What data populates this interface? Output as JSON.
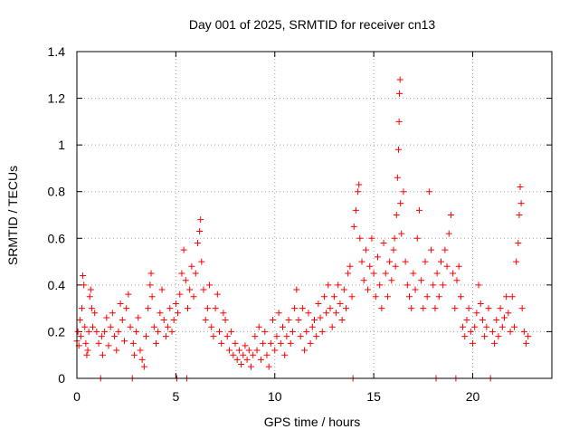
{
  "chart_data": {
    "type": "scatter",
    "title": "Day 001 of 2025, SRMTID for receiver cn13",
    "xlabel": "GPS time / hours",
    "ylabel": "SRMTID / TECUs",
    "xlim": [
      0,
      24
    ],
    "ylim": [
      0,
      1.4
    ],
    "xticks": [
      0,
      5,
      10,
      15,
      20
    ],
    "xtick_labels": [
      "0",
      "5",
      "10",
      "15",
      "20"
    ],
    "yticks": [
      0,
      0.2,
      0.4,
      0.6,
      0.8,
      1.0,
      1.2,
      1.4
    ],
    "ytick_labels": [
      "0",
      "0.2",
      "0.4",
      "0.6",
      "0.8",
      "1",
      "1.2",
      "1.4"
    ],
    "grid": true,
    "marker": "plus",
    "series": [
      {
        "name": "SRMTID",
        "color": "#ff0000",
        "points": [
          [
            0.0,
            0.16
          ],
          [
            0.05,
            0.2
          ],
          [
            0.1,
            0.14
          ],
          [
            0.15,
            0.25
          ],
          [
            0.2,
            0.18
          ],
          [
            0.25,
            0.3
          ],
          [
            0.3,
            0.44
          ],
          [
            0.35,
            0.4
          ],
          [
            0.4,
            0.22
          ],
          [
            0.45,
            0.15
          ],
          [
            0.5,
            0.1
          ],
          [
            0.55,
            0.12
          ],
          [
            0.6,
            0.2
          ],
          [
            0.65,
            0.35
          ],
          [
            0.7,
            0.38
          ],
          [
            0.75,
            0.3
          ],
          [
            0.8,
            0.22
          ],
          [
            0.9,
            0.28
          ],
          [
            1.0,
            0.2
          ],
          [
            1.1,
            0.15
          ],
          [
            1.2,
            0.0
          ],
          [
            1.25,
            0.18
          ],
          [
            1.3,
            0.1
          ],
          [
            1.4,
            0.2
          ],
          [
            1.5,
            0.26
          ],
          [
            1.6,
            0.14
          ],
          [
            1.7,
            0.22
          ],
          [
            1.8,
            0.28
          ],
          [
            1.9,
            0.18
          ],
          [
            2.0,
            0.12
          ],
          [
            2.1,
            0.2
          ],
          [
            2.2,
            0.32
          ],
          [
            2.3,
            0.25
          ],
          [
            2.4,
            0.16
          ],
          [
            2.5,
            0.3
          ],
          [
            2.6,
            0.36
          ],
          [
            2.7,
            0.22
          ],
          [
            2.8,
            0.0
          ],
          [
            2.85,
            0.15
          ],
          [
            2.9,
            0.1
          ],
          [
            3.0,
            0.2
          ],
          [
            3.1,
            0.26
          ],
          [
            3.2,
            0.12
          ],
          [
            3.3,
            0.08
          ],
          [
            3.4,
            0.05
          ],
          [
            3.5,
            0.18
          ],
          [
            3.6,
            0.3
          ],
          [
            3.7,
            0.4
          ],
          [
            3.75,
            0.45
          ],
          [
            3.8,
            0.35
          ],
          [
            3.9,
            0.22
          ],
          [
            4.0,
            0.15
          ],
          [
            4.1,
            0.2
          ],
          [
            4.2,
            0.28
          ],
          [
            4.3,
            0.38
          ],
          [
            4.4,
            0.25
          ],
          [
            4.5,
            0.18
          ],
          [
            4.6,
            0.22
          ],
          [
            4.7,
            0.3
          ],
          [
            4.8,
            0.2
          ],
          [
            4.9,
            0.25
          ],
          [
            5.0,
            0.32
          ],
          [
            5.05,
            0.0
          ],
          [
            5.1,
            0.28
          ],
          [
            5.2,
            0.36
          ],
          [
            5.3,
            0.45
          ],
          [
            5.4,
            0.55
          ],
          [
            5.5,
            0.42
          ],
          [
            5.55,
            0.0
          ],
          [
            5.6,
            0.3
          ],
          [
            5.7,
            0.38
          ],
          [
            5.8,
            0.48
          ],
          [
            5.9,
            0.35
          ],
          [
            6.0,
            0.45
          ],
          [
            6.1,
            0.58
          ],
          [
            6.2,
            0.63
          ],
          [
            6.25,
            0.68
          ],
          [
            6.3,
            0.5
          ],
          [
            6.4,
            0.38
          ],
          [
            6.5,
            0.25
          ],
          [
            6.6,
            0.3
          ],
          [
            6.7,
            0.4
          ],
          [
            6.8,
            0.22
          ],
          [
            6.9,
            0.18
          ],
          [
            7.0,
            0.3
          ],
          [
            7.1,
            0.36
          ],
          [
            7.2,
            0.2
          ],
          [
            7.3,
            0.15
          ],
          [
            7.4,
            0.28
          ],
          [
            7.5,
            0.25
          ],
          [
            7.6,
            0.18
          ],
          [
            7.7,
            0.12
          ],
          [
            7.8,
            0.2
          ],
          [
            7.9,
            0.1
          ],
          [
            8.0,
            0.15
          ],
          [
            8.1,
            0.08
          ],
          [
            8.2,
            0.12
          ],
          [
            8.3,
            0.06
          ],
          [
            8.4,
            0.1
          ],
          [
            8.5,
            0.14
          ],
          [
            8.6,
            0.08
          ],
          [
            8.7,
            0.12
          ],
          [
            8.8,
            0.05
          ],
          [
            8.9,
            0.1
          ],
          [
            9.0,
            0.18
          ],
          [
            9.1,
            0.12
          ],
          [
            9.2,
            0.22
          ],
          [
            9.3,
            0.08
          ],
          [
            9.4,
            0.15
          ],
          [
            9.5,
            0.2
          ],
          [
            9.6,
            0.1
          ],
          [
            9.7,
            0.05
          ],
          [
            9.8,
            0.15
          ],
          [
            9.9,
            0.25
          ],
          [
            10.0,
            0.12
          ],
          [
            10.1,
            0.18
          ],
          [
            10.2,
            0.28
          ],
          [
            10.3,
            0.15
          ],
          [
            10.4,
            0.22
          ],
          [
            10.5,
            0.1
          ],
          [
            10.6,
            0.18
          ],
          [
            10.7,
            0.25
          ],
          [
            10.8,
            0.15
          ],
          [
            10.9,
            0.2
          ],
          [
            11.0,
            0.3
          ],
          [
            11.1,
            0.38
          ],
          [
            11.2,
            0.25
          ],
          [
            11.3,
            0.18
          ],
          [
            11.4,
            0.3
          ],
          [
            11.5,
            0.12
          ],
          [
            11.6,
            0.2
          ],
          [
            11.7,
            0.28
          ],
          [
            11.8,
            0.15
          ],
          [
            11.9,
            0.22
          ],
          [
            12.0,
            0.25
          ],
          [
            12.1,
            0.18
          ],
          [
            12.2,
            0.32
          ],
          [
            12.3,
            0.26
          ],
          [
            12.4,
            0.2
          ],
          [
            12.5,
            0.35
          ],
          [
            12.6,
            0.28
          ],
          [
            12.7,
            0.4
          ],
          [
            12.8,
            0.3
          ],
          [
            12.9,
            0.22
          ],
          [
            13.0,
            0.35
          ],
          [
            13.1,
            0.28
          ],
          [
            13.2,
            0.4
          ],
          [
            13.3,
            0.32
          ],
          [
            13.4,
            0.25
          ],
          [
            13.5,
            0.38
          ],
          [
            13.6,
            0.3
          ],
          [
            13.7,
            0.45
          ],
          [
            13.8,
            0.48
          ],
          [
            13.9,
            0.35
          ],
          [
            13.95,
            0.0
          ],
          [
            14.0,
            0.65
          ],
          [
            14.1,
            0.72
          ],
          [
            14.2,
            0.8
          ],
          [
            14.25,
            0.83
          ],
          [
            14.3,
            0.6
          ],
          [
            14.4,
            0.5
          ],
          [
            14.5,
            0.42
          ],
          [
            14.6,
            0.55
          ],
          [
            14.7,
            0.38
          ],
          [
            14.8,
            0.48
          ],
          [
            14.9,
            0.6
          ],
          [
            15.0,
            0.45
          ],
          [
            15.1,
            0.35
          ],
          [
            15.2,
            0.52
          ],
          [
            15.3,
            0.4
          ],
          [
            15.4,
            0.3
          ],
          [
            15.5,
            0.58
          ],
          [
            15.6,
            0.45
          ],
          [
            15.7,
            0.35
          ],
          [
            15.8,
            0.5
          ],
          [
            15.9,
            0.42
          ],
          [
            16.0,
            0.55
          ],
          [
            16.05,
            0.6
          ],
          [
            16.1,
            0.48
          ],
          [
            16.15,
            0.7
          ],
          [
            16.2,
            0.86
          ],
          [
            16.25,
            0.98
          ],
          [
            16.28,
            1.1
          ],
          [
            16.3,
            1.22
          ],
          [
            16.33,
            1.28
          ],
          [
            16.35,
            0.75
          ],
          [
            16.4,
            0.62
          ],
          [
            16.5,
            0.8
          ],
          [
            16.6,
            0.5
          ],
          [
            16.7,
            0.4
          ],
          [
            16.8,
            0.35
          ],
          [
            16.9,
            0.3
          ],
          [
            17.0,
            0.45
          ],
          [
            17.1,
            0.38
          ],
          [
            17.2,
            0.6
          ],
          [
            17.3,
            0.72
          ],
          [
            17.4,
            0.42
          ],
          [
            17.5,
            0.3
          ],
          [
            17.6,
            0.5
          ],
          [
            17.7,
            0.35
          ],
          [
            17.8,
            0.8
          ],
          [
            17.9,
            0.55
          ],
          [
            18.0,
            0.4
          ],
          [
            18.1,
            0.3
          ],
          [
            18.15,
            0.0
          ],
          [
            18.2,
            0.45
          ],
          [
            18.3,
            0.35
          ],
          [
            18.4,
            0.5
          ],
          [
            18.5,
            0.4
          ],
          [
            18.6,
            0.55
          ],
          [
            18.7,
            0.48
          ],
          [
            18.8,
            0.62
          ],
          [
            18.9,
            0.7
          ],
          [
            19.0,
            0.45
          ],
          [
            19.1,
            0.3
          ],
          [
            19.15,
            0.0
          ],
          [
            19.2,
            0.42
          ],
          [
            19.3,
            0.48
          ],
          [
            19.4,
            0.35
          ],
          [
            19.5,
            0.22
          ],
          [
            19.6,
            0.18
          ],
          [
            19.7,
            0.25
          ],
          [
            19.8,
            0.3
          ],
          [
            19.9,
            0.2
          ],
          [
            20.0,
            0.15
          ],
          [
            20.1,
            0.22
          ],
          [
            20.2,
            0.28
          ],
          [
            20.3,
            0.4
          ],
          [
            20.4,
            0.32
          ],
          [
            20.5,
            0.25
          ],
          [
            20.6,
            0.18
          ],
          [
            20.7,
            0.22
          ],
          [
            20.8,
            0.3
          ],
          [
            20.9,
            0.0
          ],
          [
            21.0,
            0.2
          ],
          [
            21.1,
            0.15
          ],
          [
            21.2,
            0.25
          ],
          [
            21.3,
            0.18
          ],
          [
            21.4,
            0.3
          ],
          [
            21.5,
            0.22
          ],
          [
            21.6,
            0.26
          ],
          [
            21.7,
            0.35
          ],
          [
            21.8,
            0.28
          ],
          [
            21.9,
            0.2
          ],
          [
            22.0,
            0.35
          ],
          [
            22.1,
            0.22
          ],
          [
            22.2,
            0.5
          ],
          [
            22.3,
            0.58
          ],
          [
            22.35,
            0.7
          ],
          [
            22.4,
            0.82
          ],
          [
            22.45,
            0.75
          ],
          [
            22.5,
            0.3
          ],
          [
            22.6,
            0.2
          ],
          [
            22.7,
            0.15
          ],
          [
            22.8,
            0.18
          ]
        ]
      }
    ]
  }
}
